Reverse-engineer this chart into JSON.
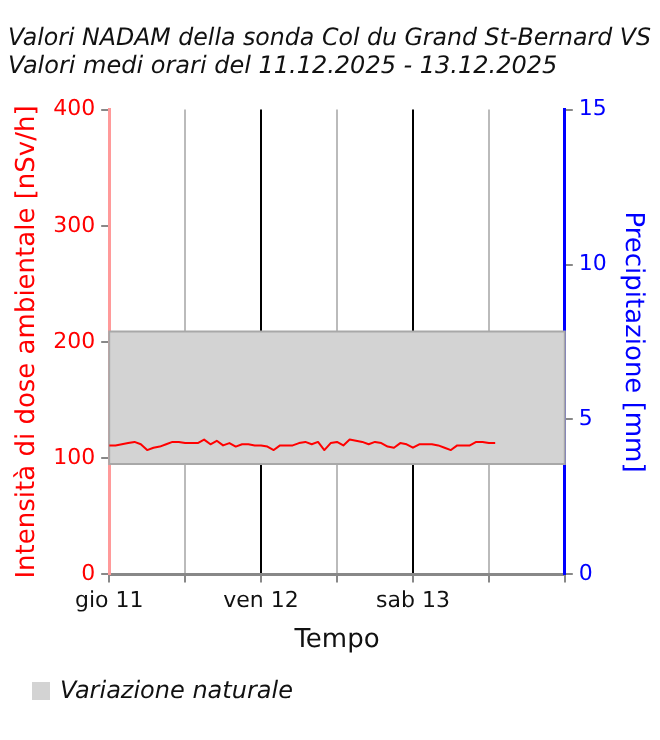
{
  "chart_data": {
    "type": "line",
    "title": [
      "Valori NADAM della sonda Col du Grand St-Bernard VS",
      "Valori medi orari del 11.12.2025 - 13.12.2025"
    ],
    "xlabel": "Tempo",
    "ylabel": "Intensità di dose ambientale [nSv/h]",
    "y2label": "Precipitazione [mm]",
    "x": [
      "2025-12-11T00:00",
      "2025-12-11T01:00",
      "2025-12-11T02:00",
      "2025-12-11T03:00",
      "2025-12-11T04:00",
      "2025-12-11T05:00",
      "2025-12-11T06:00",
      "2025-12-11T07:00",
      "2025-12-11T08:00",
      "2025-12-11T09:00",
      "2025-12-11T10:00",
      "2025-12-11T11:00",
      "2025-12-11T12:00",
      "2025-12-11T13:00",
      "2025-12-11T14:00",
      "2025-12-11T15:00",
      "2025-12-11T16:00",
      "2025-12-11T17:00",
      "2025-12-11T18:00",
      "2025-12-11T19:00",
      "2025-12-11T20:00",
      "2025-12-11T21:00",
      "2025-12-11T22:00",
      "2025-12-11T23:00",
      "2025-12-12T00:00",
      "2025-12-12T01:00",
      "2025-12-12T02:00",
      "2025-12-12T03:00",
      "2025-12-12T04:00",
      "2025-12-12T05:00",
      "2025-12-12T06:00",
      "2025-12-12T07:00",
      "2025-12-12T08:00",
      "2025-12-12T09:00",
      "2025-12-12T10:00",
      "2025-12-12T11:00",
      "2025-12-12T12:00",
      "2025-12-12T13:00",
      "2025-12-12T14:00",
      "2025-12-12T15:00",
      "2025-12-12T16:00",
      "2025-12-12T17:00",
      "2025-12-12T18:00",
      "2025-12-12T19:00",
      "2025-12-12T20:00",
      "2025-12-12T21:00",
      "2025-12-12T22:00",
      "2025-12-12T23:00",
      "2025-12-13T00:00",
      "2025-12-13T01:00",
      "2025-12-13T02:00",
      "2025-12-13T03:00",
      "2025-12-13T04:00",
      "2025-12-13T05:00",
      "2025-12-13T06:00",
      "2025-12-13T07:00",
      "2025-12-13T08:00",
      "2025-12-13T09:00",
      "2025-12-13T10:00",
      "2025-12-13T11:00",
      "2025-12-13T12:00",
      "2025-12-13T13:00"
    ],
    "series": [
      {
        "color": "#ff0000",
        "values": [
          111,
          111,
          112,
          113,
          114,
          112,
          107,
          109,
          110,
          112,
          114,
          114,
          113,
          113,
          113,
          116,
          112,
          115,
          111,
          113,
          110,
          112,
          112,
          111,
          111,
          110,
          107,
          111,
          111,
          111,
          113,
          114,
          112,
          114,
          107,
          113,
          114,
          111,
          116,
          115,
          114,
          112,
          114,
          113,
          110,
          109,
          113,
          112,
          109,
          112,
          112,
          112,
          111,
          109,
          107,
          111,
          111,
          111,
          114,
          114,
          113,
          113
        ]
      }
    ],
    "xlim": [
      "2025-12-11T00:00",
      "2025-12-14T00:00"
    ],
    "xticks": [
      {
        "value": "2025-12-11T00:00",
        "label": "gio 11"
      },
      {
        "value": "2025-12-11T12:00",
        "label": null
      },
      {
        "value": "2025-12-12T00:00",
        "label": "ven 12"
      },
      {
        "value": "2025-12-12T12:00",
        "label": null
      },
      {
        "value": "2025-12-13T00:00",
        "label": "sab 13"
      },
      {
        "value": "2025-12-13T12:00",
        "label": null
      },
      {
        "value": "2025-12-14T00:00",
        "label": null
      }
    ],
    "ylim": [
      0,
      400
    ],
    "yticks": [
      0,
      100,
      200,
      300,
      400
    ],
    "y2lim": [
      0,
      15
    ],
    "y2ticks": [
      0,
      5,
      10,
      15
    ],
    "bands": [
      {
        "axis": "y",
        "from": 95,
        "to": 209,
        "label": "Variazione naturale",
        "color": "#d3d3d3"
      }
    ],
    "grid": "x",
    "legend": "bottom left",
    "marker": "none",
    "line_style": "solid"
  }
}
